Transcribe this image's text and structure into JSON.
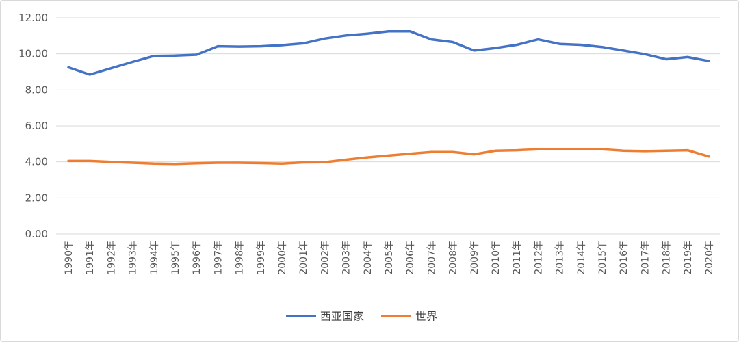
{
  "chart_data": {
    "type": "line",
    "title": "",
    "xlabel": "",
    "ylabel": "",
    "ylim": [
      0,
      12
    ],
    "y_ticks": [
      "0.00",
      "2.00",
      "4.00",
      "6.00",
      "8.00",
      "10.00",
      "12.00"
    ],
    "grid": "horizontal",
    "legend_position": "bottom",
    "categories": [
      "1990年",
      "1991年",
      "1992年",
      "1993年",
      "1994年",
      "1995年",
      "1996年",
      "1997年",
      "1998年",
      "1999年",
      "2000年",
      "2001年",
      "2002年",
      "2003年",
      "2004年",
      "2005年",
      "2006年",
      "2007年",
      "2008年",
      "2009年",
      "2010年",
      "2011年",
      "2012年",
      "2013年",
      "2014年",
      "2015年",
      "2016年",
      "2017年",
      "2018年",
      "2019年",
      "2020年"
    ],
    "series": [
      {
        "name": "西亚国家",
        "color": "#4472C4",
        "values": [
          9.25,
          8.85,
          9.2,
          9.55,
          9.88,
          9.9,
          9.95,
          10.42,
          10.4,
          10.42,
          10.48,
          10.58,
          10.85,
          11.02,
          11.12,
          11.25,
          11.25,
          10.8,
          10.65,
          10.18,
          10.32,
          10.5,
          10.8,
          10.55,
          10.5,
          10.38,
          10.18,
          9.98,
          9.7,
          9.82,
          9.6
        ]
      },
      {
        "name": "世界",
        "color": "#ED7D31",
        "values": [
          4.05,
          4.05,
          4.0,
          3.95,
          3.9,
          3.88,
          3.92,
          3.95,
          3.95,
          3.93,
          3.9,
          3.97,
          3.98,
          4.12,
          4.25,
          4.35,
          4.45,
          4.55,
          4.55,
          4.42,
          4.62,
          4.65,
          4.7,
          4.7,
          4.72,
          4.7,
          4.62,
          4.6,
          4.62,
          4.65,
          4.3
        ]
      }
    ]
  }
}
